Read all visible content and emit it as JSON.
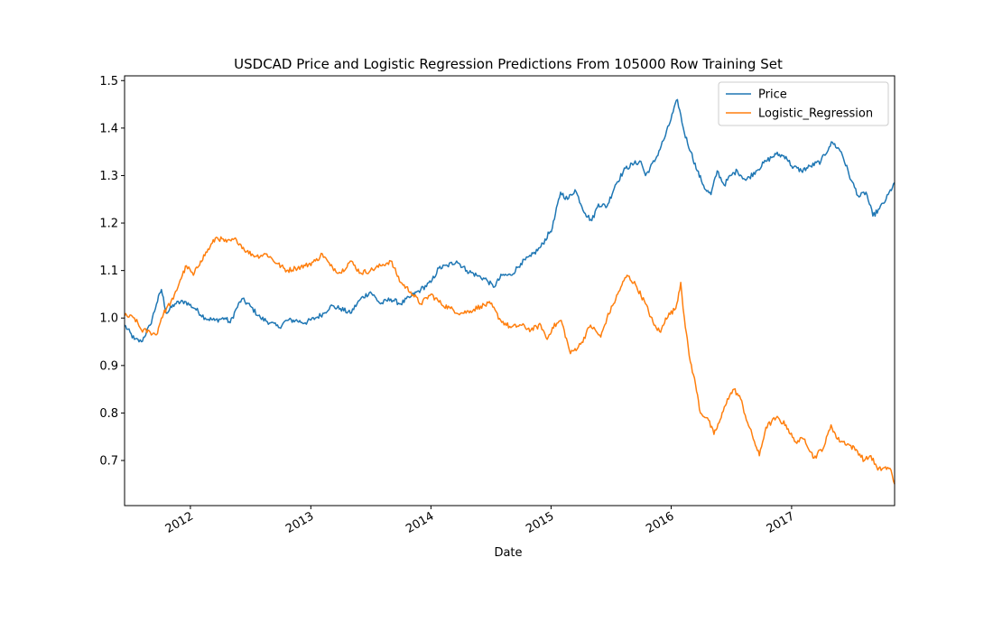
{
  "chart_data": {
    "type": "line",
    "title": "USDCAD Price and Logistic Regression Predictions From 105000 Row Training Set",
    "xlabel": "Date",
    "ylabel": "",
    "xlim": [
      "2011-06-15",
      "2017-11-10"
    ],
    "ylim": [
      0.605,
      1.51
    ],
    "yticks": [
      0.7,
      0.8,
      0.9,
      1.0,
      1.1,
      1.2,
      1.3,
      1.4,
      1.5
    ],
    "ytick_labels": [
      "0.7",
      "0.8",
      "0.9",
      "1.0",
      "1.1",
      "1.2",
      "1.3",
      "1.4",
      "1.5"
    ],
    "xticks": [
      "2012-01-01",
      "2013-01-01",
      "2014-01-01",
      "2015-01-01",
      "2016-01-01",
      "2017-01-01"
    ],
    "xtick_labels": [
      "2012",
      "2013",
      "2014",
      "2015",
      "2016",
      "2017"
    ],
    "grid": false,
    "legend": "top-right",
    "series": [
      {
        "name": "Price",
        "color": "#1f77b4",
        "points": [
          [
            "2011-06-15",
            0.985
          ],
          [
            "2011-07-15",
            0.955
          ],
          [
            "2011-08-05",
            0.95
          ],
          [
            "2011-09-01",
            0.985
          ],
          [
            "2011-09-20",
            1.03
          ],
          [
            "2011-10-05",
            1.06
          ],
          [
            "2011-10-20",
            1.01
          ],
          [
            "2011-11-15",
            1.03
          ],
          [
            "2011-12-15",
            1.035
          ],
          [
            "2012-01-15",
            1.02
          ],
          [
            "2012-02-15",
            1.0
          ],
          [
            "2012-03-15",
            0.995
          ],
          [
            "2012-04-15",
            1.0
          ],
          [
            "2012-05-01",
            0.99
          ],
          [
            "2012-05-20",
            1.02
          ],
          [
            "2012-06-05",
            1.04
          ],
          [
            "2012-07-01",
            1.025
          ],
          [
            "2012-08-01",
            1.0
          ],
          [
            "2012-09-01",
            0.99
          ],
          [
            "2012-09-25",
            0.98
          ],
          [
            "2012-10-20",
            0.995
          ],
          [
            "2012-11-15",
            0.995
          ],
          [
            "2012-12-15",
            0.99
          ],
          [
            "2013-01-15",
            1.0
          ],
          [
            "2013-02-10",
            1.01
          ],
          [
            "2013-03-01",
            1.025
          ],
          [
            "2013-04-01",
            1.02
          ],
          [
            "2013-05-01",
            1.01
          ],
          [
            "2013-06-01",
            1.04
          ],
          [
            "2013-07-01",
            1.055
          ],
          [
            "2013-08-01",
            1.03
          ],
          [
            "2013-09-01",
            1.04
          ],
          [
            "2013-10-01",
            1.03
          ],
          [
            "2013-11-01",
            1.045
          ],
          [
            "2013-12-01",
            1.06
          ],
          [
            "2014-01-01",
            1.075
          ],
          [
            "2014-01-25",
            1.105
          ],
          [
            "2014-02-20",
            1.11
          ],
          [
            "2014-03-20",
            1.12
          ],
          [
            "2014-04-20",
            1.1
          ],
          [
            "2014-05-20",
            1.09
          ],
          [
            "2014-06-20",
            1.08
          ],
          [
            "2014-07-10",
            1.065
          ],
          [
            "2014-08-05",
            1.09
          ],
          [
            "2014-09-01",
            1.09
          ],
          [
            "2014-10-01",
            1.115
          ],
          [
            "2014-11-01",
            1.13
          ],
          [
            "2014-12-01",
            1.15
          ],
          [
            "2015-01-05",
            1.19
          ],
          [
            "2015-01-30",
            1.265
          ],
          [
            "2015-02-20",
            1.25
          ],
          [
            "2015-03-15",
            1.27
          ],
          [
            "2015-04-15",
            1.22
          ],
          [
            "2015-05-05",
            1.205
          ],
          [
            "2015-05-25",
            1.24
          ],
          [
            "2015-06-20",
            1.235
          ],
          [
            "2015-07-15",
            1.28
          ],
          [
            "2015-08-15",
            1.315
          ],
          [
            "2015-09-10",
            1.325
          ],
          [
            "2015-10-01",
            1.33
          ],
          [
            "2015-10-15",
            1.3
          ],
          [
            "2015-11-15",
            1.335
          ],
          [
            "2015-12-15",
            1.385
          ],
          [
            "2016-01-20",
            1.46
          ],
          [
            "2016-02-10",
            1.39
          ],
          [
            "2016-03-01",
            1.35
          ],
          [
            "2016-03-20",
            1.31
          ],
          [
            "2016-04-15",
            1.27
          ],
          [
            "2016-05-01",
            1.26
          ],
          [
            "2016-05-20",
            1.31
          ],
          [
            "2016-06-10",
            1.28
          ],
          [
            "2016-06-30",
            1.3
          ],
          [
            "2016-07-20",
            1.31
          ],
          [
            "2016-08-15",
            1.29
          ],
          [
            "2016-09-15",
            1.31
          ],
          [
            "2016-10-15",
            1.33
          ],
          [
            "2016-11-15",
            1.345
          ],
          [
            "2016-12-15",
            1.34
          ],
          [
            "2017-01-01",
            1.32
          ],
          [
            "2017-01-31",
            1.31
          ],
          [
            "2017-02-28",
            1.32
          ],
          [
            "2017-03-31",
            1.33
          ],
          [
            "2017-04-25",
            1.36
          ],
          [
            "2017-05-05",
            1.37
          ],
          [
            "2017-06-01",
            1.35
          ],
          [
            "2017-07-01",
            1.29
          ],
          [
            "2017-07-25",
            1.255
          ],
          [
            "2017-08-15",
            1.265
          ],
          [
            "2017-09-05",
            1.215
          ],
          [
            "2017-09-25",
            1.23
          ],
          [
            "2017-10-15",
            1.25
          ],
          [
            "2017-11-10",
            1.285
          ]
        ]
      },
      {
        "name": "Logistic_Regression",
        "color": "#ff7f0e",
        "points": [
          [
            "2011-06-15",
            1.005
          ],
          [
            "2011-07-15",
            1.0
          ],
          [
            "2011-08-05",
            0.975
          ],
          [
            "2011-09-01",
            0.97
          ],
          [
            "2011-09-20",
            0.965
          ],
          [
            "2011-10-05",
            1.0
          ],
          [
            "2011-10-20",
            1.02
          ],
          [
            "2011-11-10",
            1.04
          ],
          [
            "2011-12-01",
            1.08
          ],
          [
            "2011-12-20",
            1.11
          ],
          [
            "2012-01-10",
            1.09
          ],
          [
            "2012-02-01",
            1.12
          ],
          [
            "2012-03-01",
            1.15
          ],
          [
            "2012-03-20",
            1.17
          ],
          [
            "2012-04-20",
            1.16
          ],
          [
            "2012-05-20",
            1.165
          ],
          [
            "2012-06-20",
            1.14
          ],
          [
            "2012-07-20",
            1.13
          ],
          [
            "2012-08-20",
            1.135
          ],
          [
            "2012-09-20",
            1.115
          ],
          [
            "2012-10-20",
            1.1
          ],
          [
            "2012-11-15",
            1.105
          ],
          [
            "2012-12-15",
            1.11
          ],
          [
            "2013-01-15",
            1.12
          ],
          [
            "2013-02-05",
            1.135
          ],
          [
            "2013-03-01",
            1.11
          ],
          [
            "2013-04-01",
            1.095
          ],
          [
            "2013-05-01",
            1.12
          ],
          [
            "2013-06-01",
            1.095
          ],
          [
            "2013-07-01",
            1.1
          ],
          [
            "2013-08-01",
            1.11
          ],
          [
            "2013-09-01",
            1.12
          ],
          [
            "2013-10-01",
            1.075
          ],
          [
            "2013-11-01",
            1.055
          ],
          [
            "2013-12-01",
            1.03
          ],
          [
            "2014-01-01",
            1.05
          ],
          [
            "2014-02-01",
            1.03
          ],
          [
            "2014-03-01",
            1.02
          ],
          [
            "2014-04-01",
            1.01
          ],
          [
            "2014-05-01",
            1.015
          ],
          [
            "2014-06-01",
            1.025
          ],
          [
            "2014-07-01",
            1.03
          ],
          [
            "2014-08-01",
            0.995
          ],
          [
            "2014-09-01",
            0.98
          ],
          [
            "2014-10-01",
            0.985
          ],
          [
            "2014-11-01",
            0.975
          ],
          [
            "2014-12-01",
            0.985
          ],
          [
            "2014-12-20",
            0.955
          ],
          [
            "2015-01-05",
            0.98
          ],
          [
            "2015-02-01",
            0.995
          ],
          [
            "2015-03-01",
            0.925
          ],
          [
            "2015-04-01",
            0.945
          ],
          [
            "2015-05-01",
            0.985
          ],
          [
            "2015-06-01",
            0.96
          ],
          [
            "2015-06-20",
            1.0
          ],
          [
            "2015-07-10",
            1.03
          ],
          [
            "2015-08-01",
            1.065
          ],
          [
            "2015-08-20",
            1.09
          ],
          [
            "2015-09-15",
            1.07
          ],
          [
            "2015-10-15",
            1.03
          ],
          [
            "2015-11-10",
            0.985
          ],
          [
            "2015-11-30",
            0.97
          ],
          [
            "2015-12-15",
            1.0
          ],
          [
            "2016-01-15",
            1.02
          ],
          [
            "2016-01-30",
            1.075
          ],
          [
            "2016-02-10",
            1.0
          ],
          [
            "2016-02-25",
            0.92
          ],
          [
            "2016-03-15",
            0.86
          ],
          [
            "2016-03-30",
            0.8
          ],
          [
            "2016-04-20",
            0.79
          ],
          [
            "2016-05-10",
            0.755
          ],
          [
            "2016-06-01",
            0.79
          ],
          [
            "2016-06-20",
            0.83
          ],
          [
            "2016-07-10",
            0.85
          ],
          [
            "2016-07-30",
            0.83
          ],
          [
            "2016-08-20",
            0.78
          ],
          [
            "2016-09-10",
            0.74
          ],
          [
            "2016-09-25",
            0.71
          ],
          [
            "2016-10-15",
            0.77
          ],
          [
            "2016-11-15",
            0.79
          ],
          [
            "2016-12-15",
            0.775
          ],
          [
            "2017-01-10",
            0.74
          ],
          [
            "2017-02-10",
            0.745
          ],
          [
            "2017-03-10",
            0.705
          ],
          [
            "2017-04-10",
            0.73
          ],
          [
            "2017-05-01",
            0.775
          ],
          [
            "2017-05-20",
            0.745
          ],
          [
            "2017-06-20",
            0.735
          ],
          [
            "2017-07-20",
            0.72
          ],
          [
            "2017-08-10",
            0.7
          ],
          [
            "2017-08-30",
            0.71
          ],
          [
            "2017-09-20",
            0.68
          ],
          [
            "2017-10-10",
            0.685
          ],
          [
            "2017-10-30",
            0.68
          ],
          [
            "2017-11-10",
            0.65
          ]
        ]
      }
    ]
  }
}
